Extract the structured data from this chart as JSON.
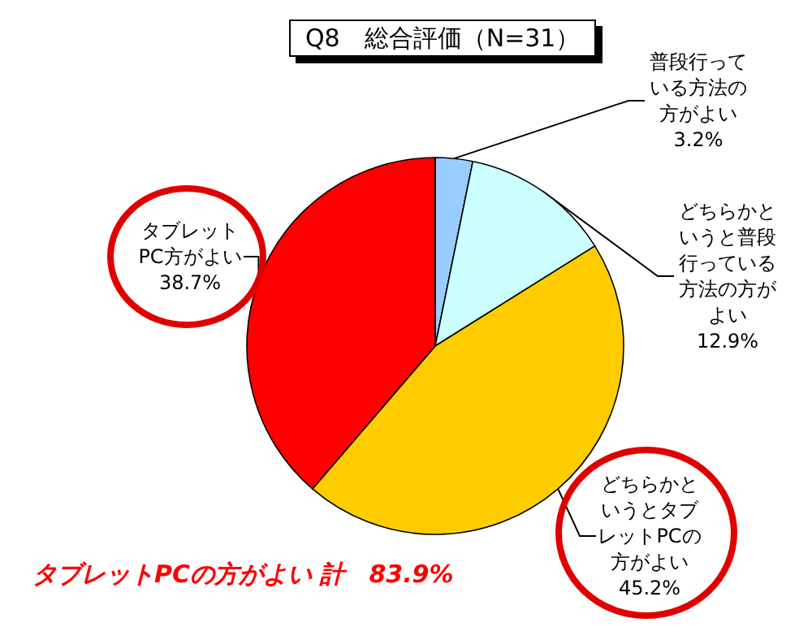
{
  "chart_data": {
    "type": "pie",
    "title": "Q8　総合評価（N=31）",
    "categories": [
      "普段行っている方法の方がよい",
      "どちらかというと普段行っている方法の方がよい",
      "どちらかというとタブレットPCの方がよい",
      "タブレットPC方がよい"
    ],
    "values": [
      3.2,
      12.9,
      45.2,
      38.7
    ],
    "value_labels": [
      "3.2%",
      "12.9%",
      "45.2%",
      "38.7%"
    ],
    "colors": [
      "#99ccff",
      "#ccffff",
      "#ffcc00",
      "#ff0000"
    ],
    "annotations": [
      "タブレットPCの方がよい 計　83.9%"
    ],
    "legend": false
  }
}
